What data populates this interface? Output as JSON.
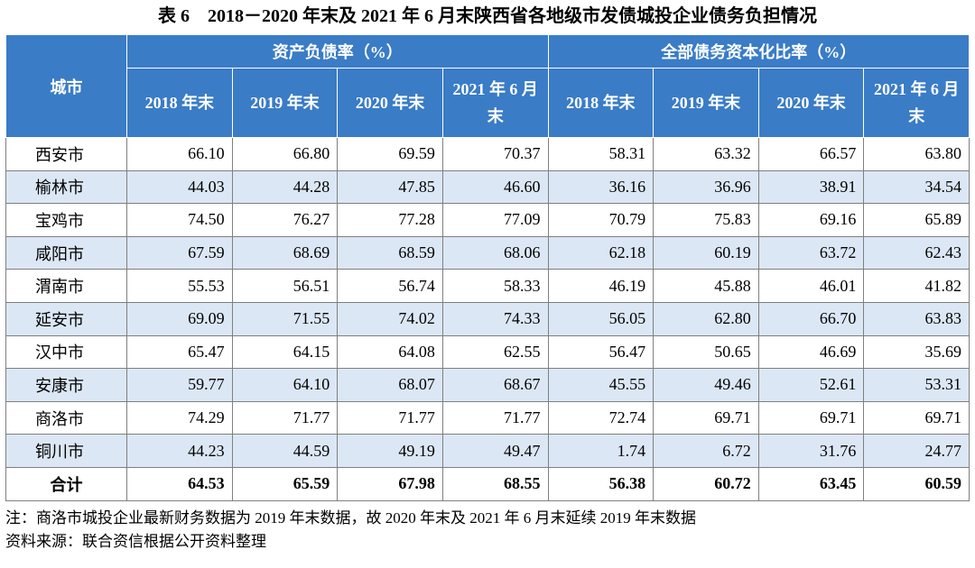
{
  "title": "表 6　2018－2020 年末及 2021 年 6 月末陕西省各地级市发债城投企业债务负担情况",
  "table": {
    "header": {
      "city": "城市",
      "groups": [
        {
          "name": "资产负债率（%）",
          "periods": [
            "2018 年末",
            "2019 年末",
            "2020 年末",
            "2021 年 6 月末"
          ]
        },
        {
          "name": "全部债务资本化比率（%）",
          "periods": [
            "2018 年末",
            "2019 年末",
            "2020 年末",
            "2021 年 6 月末"
          ]
        }
      ]
    },
    "rows": [
      [
        "西安市",
        "66.10",
        "66.80",
        "69.59",
        "70.37",
        "58.31",
        "63.32",
        "66.57",
        "63.80"
      ],
      [
        "榆林市",
        "44.03",
        "44.28",
        "47.85",
        "46.60",
        "36.16",
        "36.96",
        "38.91",
        "34.54"
      ],
      [
        "宝鸡市",
        "74.50",
        "76.27",
        "77.28",
        "77.09",
        "70.79",
        "75.83",
        "69.16",
        "65.89"
      ],
      [
        "咸阳市",
        "67.59",
        "68.69",
        "68.59",
        "68.06",
        "62.18",
        "60.19",
        "63.72",
        "62.43"
      ],
      [
        "渭南市",
        "55.53",
        "56.51",
        "56.74",
        "58.33",
        "46.19",
        "45.88",
        "46.01",
        "41.82"
      ],
      [
        "延安市",
        "69.09",
        "71.55",
        "74.02",
        "74.33",
        "56.05",
        "62.80",
        "66.70",
        "63.83"
      ],
      [
        "汉中市",
        "65.47",
        "64.15",
        "64.08",
        "62.55",
        "56.47",
        "50.65",
        "46.69",
        "35.69"
      ],
      [
        "安康市",
        "59.77",
        "64.10",
        "68.07",
        "68.67",
        "45.55",
        "49.46",
        "52.61",
        "53.31"
      ],
      [
        "商洛市",
        "74.29",
        "71.77",
        "71.77",
        "71.77",
        "72.74",
        "69.71",
        "69.71",
        "69.71"
      ],
      [
        "铜川市",
        "44.23",
        "44.59",
        "49.19",
        "49.47",
        "1.74",
        "6.72",
        "31.76",
        "24.77"
      ]
    ],
    "total": [
      "合计",
      "64.53",
      "65.59",
      "67.98",
      "68.55",
      "56.38",
      "60.72",
      "63.45",
      "60.59"
    ]
  },
  "notes": [
    "注：商洛市城投企业最新财务数据为 2019 年末数据，故 2020 年末及 2021 年 6 月末延续 2019 年末数据",
    "资料来源：联合资信根据公开资料整理"
  ]
}
